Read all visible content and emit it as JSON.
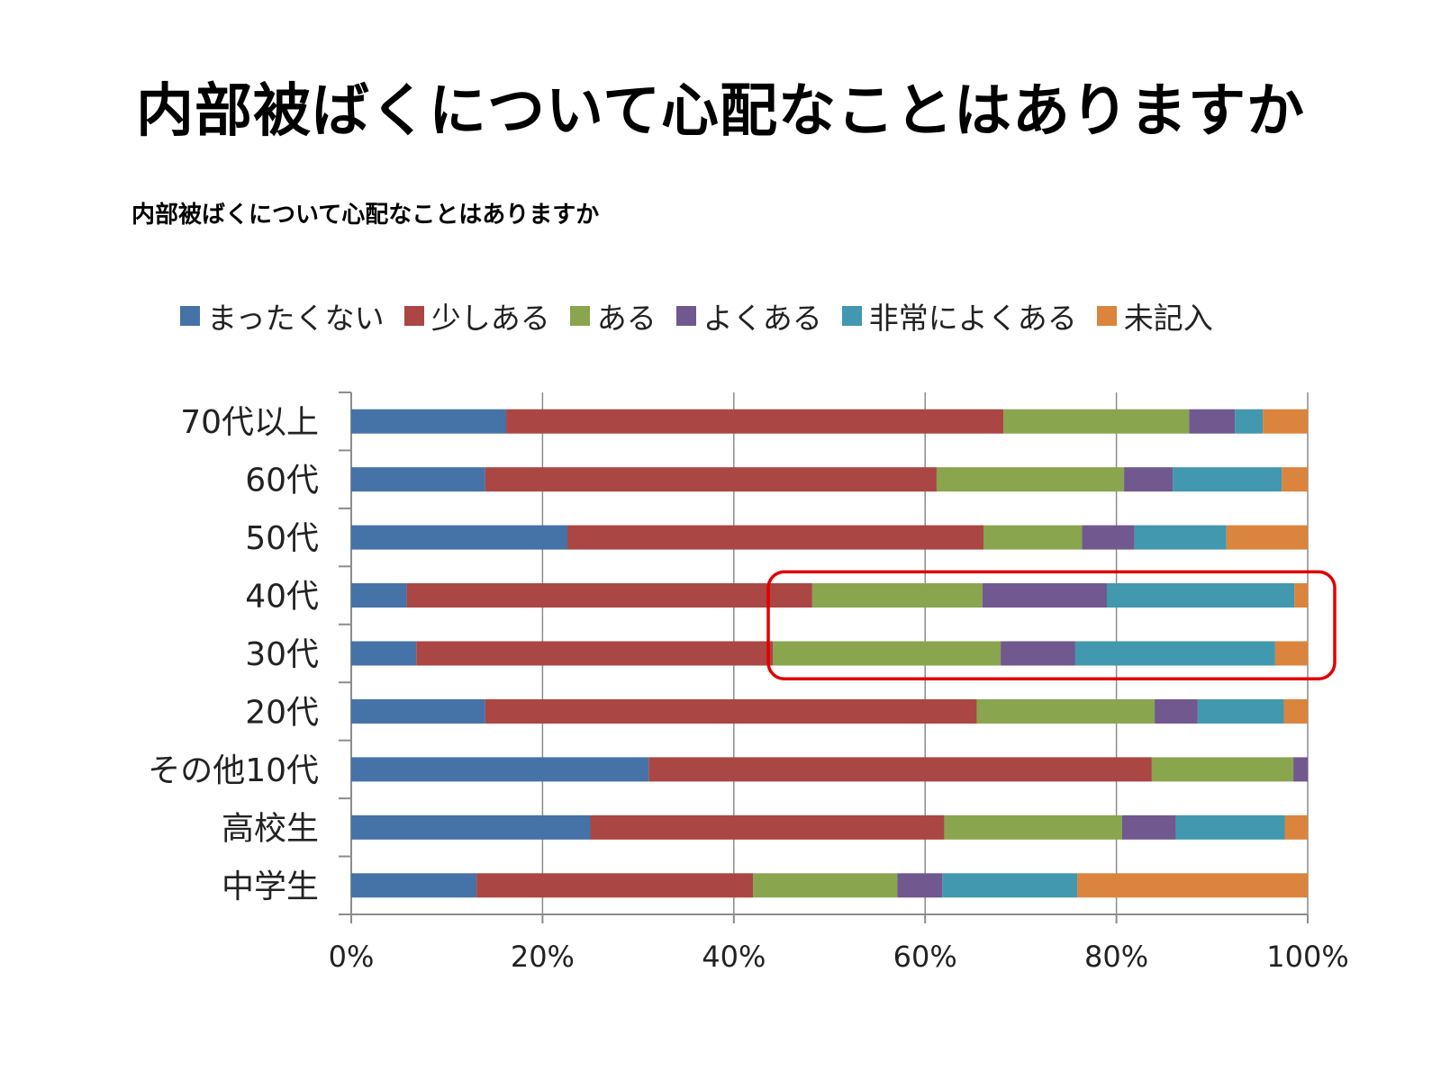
{
  "slide_title": "内部被ばくについて心配なことはありますか",
  "colors": {
    "highlight": "#e00000",
    "axis": "#8c8c8c",
    "grid": "#8c8c8c"
  },
  "chart_data": {
    "type": "bar",
    "orientation": "horizontal",
    "stacked": "percent",
    "title": "内部被ばくについて心配なことはありますか",
    "xlabel": "",
    "ylabel": "",
    "xlim": [
      0,
      100
    ],
    "x_ticks": [
      "0%",
      "20%",
      "40%",
      "60%",
      "80%",
      "100%"
    ],
    "grid": true,
    "legend_position": "top",
    "categories": [
      "70代以上",
      "60代",
      "50代",
      "40代",
      "30代",
      "20代",
      "その他10代",
      "高校生",
      "中学生"
    ],
    "series": [
      {
        "name": "まったくない",
        "color": "#4572a7",
        "values": [
          16.2,
          14.0,
          22.6,
          5.8,
          6.8,
          14.0,
          31.1,
          25.0,
          13.1
        ]
      },
      {
        "name": "少しある",
        "color": "#aa4643",
        "values": [
          52.0,
          47.2,
          43.5,
          42.4,
          37.3,
          51.4,
          52.6,
          37.0,
          28.9
        ]
      },
      {
        "name": "ある",
        "color": "#89a54e",
        "values": [
          19.4,
          19.6,
          10.3,
          17.8,
          23.8,
          18.6,
          14.8,
          18.6,
          15.1
        ]
      },
      {
        "name": "よくある",
        "color": "#71588f",
        "values": [
          4.8,
          5.1,
          5.5,
          13.0,
          7.8,
          4.5,
          1.5,
          5.6,
          4.7
        ]
      },
      {
        "name": "非常によくある",
        "color": "#4198af",
        "values": [
          2.9,
          11.4,
          9.6,
          19.6,
          20.9,
          9.0,
          0,
          11.4,
          14.1
        ]
      },
      {
        "name": "未記入",
        "color": "#db843d",
        "values": [
          4.7,
          2.7,
          8.5,
          1.4,
          3.4,
          2.5,
          0,
          2.4,
          24.1
        ]
      }
    ],
    "highlight_categories": [
      "40代",
      "30代"
    ]
  }
}
